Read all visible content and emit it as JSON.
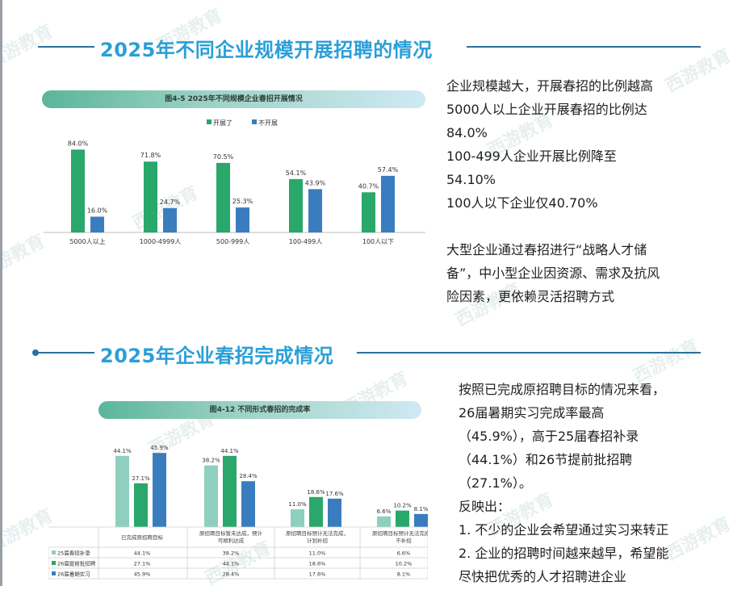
{
  "section1": {
    "title": "2025年不同企业规模开展招聘的情况"
  },
  "section2": {
    "title": "2025年企业春招完成情况"
  },
  "watermark": "西游教育",
  "chart1_data": {
    "type": "bar",
    "title": "图4-5  2025年不同规模企业春招开展情况",
    "categories": [
      "5000人以上",
      "1000-4999人",
      "500-999人",
      "100-499人",
      "100人以下"
    ],
    "series": [
      {
        "name": "开展了",
        "color": "#2aa76a",
        "values": [
          84.0,
          71.8,
          70.5,
          54.1,
          40.7
        ],
        "labels": [
          "84.0%",
          "71.8%",
          "70.5%",
          "54.1%",
          "40.7%"
        ]
      },
      {
        "name": "不开展",
        "color": "#3a7dbf",
        "values": [
          16.0,
          24.7,
          25.3,
          43.9,
          57.4
        ],
        "labels": [
          "16.0%",
          "24.7%",
          "25.3%",
          "43.9%",
          "57.4%"
        ]
      }
    ],
    "legend_position": "top-center",
    "ylim": [
      0,
      90
    ]
  },
  "chart2_data": {
    "type": "bar",
    "title": "图4-12  不同形式春招的完成率",
    "categories": [
      "已完成原招聘目标",
      "原招聘目标暂未达成，预计可顺利达成",
      "原招聘目标预计无法完成，计划补招",
      "原招聘目标预计无法完成，不补招"
    ],
    "series": [
      {
        "name": "25届春招补录",
        "color": "#8fcfc0",
        "values": [
          44.1,
          38.2,
          11.0,
          6.6
        ],
        "labels": [
          "44.1%",
          "38.2%",
          "11.0%",
          "6.6%"
        ]
      },
      {
        "name": "26届提前批招聘",
        "color": "#2aa76a",
        "values": [
          27.1,
          44.1,
          18.6,
          10.2
        ],
        "labels": [
          "27.1%",
          "44.1%",
          "18.6%",
          "10.2%"
        ]
      },
      {
        "name": "26届暑期实习",
        "color": "#3a7dbf",
        "values": [
          45.9,
          28.4,
          17.6,
          8.1
        ],
        "labels": [
          "45.9%",
          "28.4%",
          "17.6%",
          "8.1%"
        ]
      }
    ],
    "legend_position": "table-rows",
    "ylim": [
      0,
      50
    ]
  },
  "text1": [
    "企业规模越大，开展春招的比例越高",
    "5000人以上企业开展春招的比例达",
    "84.0%",
    "100-499人企业开展比例降至",
    "54.10%",
    "100人以下企业仅40.70%",
    "",
    "大型企业通过春招进行“战略人才储",
    "备”，中小型企业因资源、需求及抗风",
    "险因素，更依赖灵活招聘方式"
  ],
  "text2": [
    "按照已完成原招聘目标的情况来看，",
    "26届暑期实习完成率最高",
    "（45.9%），高于25届春招补录",
    "（44.1%）和26节提前批招聘",
    "（27.1%）。",
    "反映出：",
    "1. 不少的企业会希望通过实习来转正",
    "2. 企业的招聘时间越来越早，希望能",
    "尽快把优秀的人才招聘进企业"
  ]
}
